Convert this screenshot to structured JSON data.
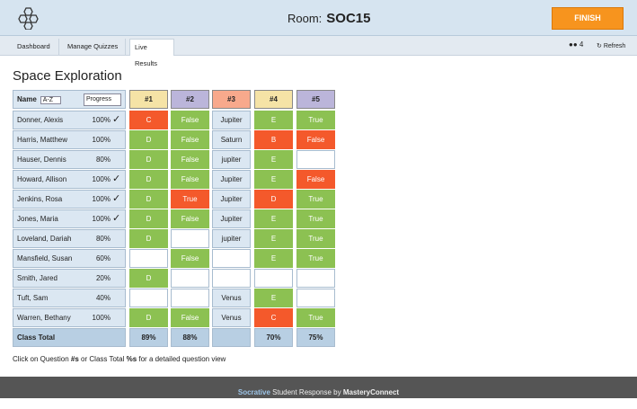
{
  "header": {
    "room_label": "Room:",
    "room": "SOC15",
    "finish": "FINISH"
  },
  "nav": {
    "tabs": [
      "Dashboard",
      "Manage Quizzes",
      "Live Results"
    ],
    "active_tab": 2,
    "student_count": "4",
    "refresh": "Refresh"
  },
  "title": "Space Exploration",
  "table": {
    "name_label": "Name",
    "sort": "A-Z",
    "progress_label": "Progress",
    "questions": [
      {
        "label": "#1",
        "color": "#f5e3a6"
      },
      {
        "label": "#2",
        "color": "#bbb5da"
      },
      {
        "label": "#3",
        "color": "#f8a98c"
      },
      {
        "label": "#4",
        "color": "#f5e3a6"
      },
      {
        "label": "#5",
        "color": "#bbb5da"
      }
    ],
    "rows": [
      {
        "name": "Donner, Alexis",
        "progress": "100%",
        "check": "✓",
        "answers": [
          {
            "text": "C",
            "result": "incorrect"
          },
          {
            "text": "False",
            "result": "correct"
          },
          {
            "text": "Jupiter",
            "result": "open"
          },
          {
            "text": "E",
            "result": "correct"
          },
          {
            "text": "True",
            "result": "correct"
          }
        ]
      },
      {
        "name": "Harris, Matthew",
        "progress": "100%",
        "answers": [
          {
            "text": "D",
            "result": "correct"
          },
          {
            "text": "False",
            "result": "correct"
          },
          {
            "text": "Saturn",
            "result": "open"
          },
          {
            "text": "B",
            "result": "incorrect"
          },
          {
            "text": "False",
            "result": "incorrect"
          }
        ]
      },
      {
        "name": "Hauser, Dennis",
        "progress": "80%",
        "answers": [
          {
            "text": "D",
            "result": "correct"
          },
          {
            "text": "False",
            "result": "correct"
          },
          {
            "text": "jupiter",
            "result": "open"
          },
          {
            "text": "E",
            "result": "correct"
          },
          null
        ]
      },
      {
        "name": "Howard, Allison",
        "progress": "100%",
        "check": "✓",
        "answers": [
          {
            "text": "D",
            "result": "correct"
          },
          {
            "text": "False",
            "result": "correct"
          },
          {
            "text": "Jupiter",
            "result": "open"
          },
          {
            "text": "E",
            "result": "correct"
          },
          {
            "text": "False",
            "result": "incorrect"
          }
        ]
      },
      {
        "name": "Jenkins, Rosa",
        "progress": "100%",
        "check": "✓",
        "answers": [
          {
            "text": "D",
            "result": "correct"
          },
          {
            "text": "True",
            "result": "incorrect"
          },
          {
            "text": "Jupiter",
            "result": "open"
          },
          {
            "text": "D",
            "result": "incorrect"
          },
          {
            "text": "True",
            "result": "correct"
          }
        ]
      },
      {
        "name": "Jones, Maria",
        "progress": "100%",
        "check": "✓",
        "answers": [
          {
            "text": "D",
            "result": "correct"
          },
          {
            "text": "False",
            "result": "correct"
          },
          {
            "text": "Jupiter",
            "result": "open"
          },
          {
            "text": "E",
            "result": "correct"
          },
          {
            "text": "True",
            "result": "correct"
          }
        ]
      },
      {
        "name": "Loveland, Dariah",
        "progress": "80%",
        "answers": [
          {
            "text": "D",
            "result": "correct"
          },
          null,
          {
            "text": "jupiter",
            "result": "open"
          },
          {
            "text": "E",
            "result": "correct"
          },
          {
            "text": "True",
            "result": "correct"
          }
        ]
      },
      {
        "name": "Mansfield, Susan",
        "progress": "60%",
        "answers": [
          null,
          {
            "text": "False",
            "result": "correct"
          },
          null,
          {
            "text": "E",
            "result": "correct"
          },
          {
            "text": "True",
            "result": "correct"
          }
        ]
      },
      {
        "name": "Smith, Jared",
        "progress": "20%",
        "answers": [
          {
            "text": "D",
            "result": "correct"
          },
          null,
          null,
          null,
          null
        ]
      },
      {
        "name": "Tuft, Sam",
        "progress": "40%",
        "answers": [
          null,
          null,
          {
            "text": "Venus",
            "result": "open"
          },
          {
            "text": "E",
            "result": "correct"
          },
          null
        ]
      },
      {
        "name": "Warren, Bethany",
        "progress": "100%",
        "answers": [
          {
            "text": "D",
            "result": "correct"
          },
          {
            "text": "False",
            "result": "correct"
          },
          {
            "text": "Venus",
            "result": "open"
          },
          {
            "text": "C",
            "result": "incorrect"
          },
          {
            "text": "True",
            "result": "correct"
          }
        ]
      }
    ],
    "total_label": "Class Total",
    "totals": [
      "89%",
      "88%",
      null,
      "70%",
      "75%"
    ]
  },
  "hint": [
    "Click on Question ",
    "#s",
    " or Class Total ",
    "%s",
    " for a detailed question view"
  ],
  "footer": [
    "Socrative",
    " Student Response by ",
    "MasteryConnect"
  ]
}
